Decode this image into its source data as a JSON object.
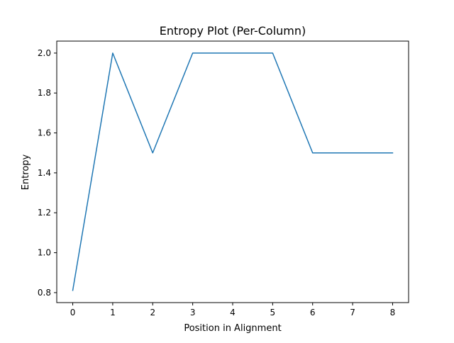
{
  "chart_data": {
    "type": "line",
    "title": "Entropy Plot (Per-Column)",
    "xlabel": "Position in Alignment",
    "ylabel": "Entropy",
    "xlim": [
      -0.4,
      8.4
    ],
    "ylim": [
      0.75,
      2.06
    ],
    "xticks": [
      0,
      1,
      2,
      3,
      4,
      5,
      6,
      7,
      8
    ],
    "xtick_labels": [
      "0",
      "1",
      "2",
      "3",
      "4",
      "5",
      "6",
      "7",
      "8"
    ],
    "yticks": [
      0.8,
      1.0,
      1.2,
      1.4,
      1.6,
      1.8,
      2.0
    ],
    "ytick_labels": [
      "0.8",
      "1.0",
      "1.2",
      "1.4",
      "1.6",
      "1.8",
      "2.0"
    ],
    "grid": false,
    "series": [
      {
        "color": "#1f77b4",
        "x": [
          0,
          1,
          2,
          3,
          4,
          5,
          6,
          7,
          8
        ],
        "y": [
          0.811,
          2.0,
          1.5,
          2.0,
          2.0,
          2.0,
          1.5,
          1.5,
          1.5
        ]
      }
    ]
  }
}
